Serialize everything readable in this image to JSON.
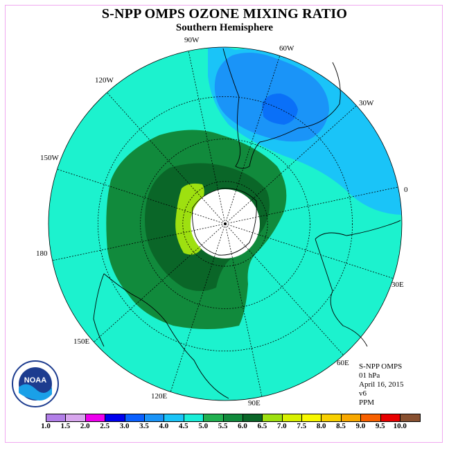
{
  "title": "S-NPP OMPS OZONE MIXING RATIO",
  "subtitle": "Southern Hemisphere",
  "longitude_labels": [
    "90W",
    "60W",
    "30W",
    "0",
    "30E",
    "60E",
    "90E",
    "120E",
    "150E",
    "180",
    "150W",
    "120W"
  ],
  "info": {
    "instrument": "S-NPP OMPS",
    "level": "01 hPa",
    "date": "April 16, 2015",
    "version": "v6",
    "units": "PPM"
  },
  "logo_text": "NOAA",
  "colorbar": {
    "labels": [
      "1.0",
      "1.5",
      "2.0",
      "2.5",
      "3.0",
      "3.5",
      "4.0",
      "4.5",
      "5.0",
      "5.5",
      "6.0",
      "6.5",
      "7.0",
      "7.5",
      "8.0",
      "8.5",
      "9.0",
      "9.5",
      "10.0"
    ],
    "colors": [
      "#b27fe8",
      "#d8a6ee",
      "#ee00ee",
      "#0000ee",
      "#0a60ff",
      "#1a94f8",
      "#1ac4f8",
      "#1aeed8",
      "#21b050",
      "#118a3c",
      "#0a6628",
      "#9ee010",
      "#d8f000",
      "#f8f800",
      "#f8d000",
      "#f8a800",
      "#f86000",
      "#e80000",
      "#885030"
    ]
  },
  "map_colors": {
    "background_field": "#1cf2ce",
    "contour_4_5": "#1ac4f8",
    "contour_4_0": "#1a94f8",
    "contour_3_5": "#0a70f8",
    "contour_5_5": "#118a3c",
    "contour_6_0": "#0a6628",
    "contour_6_5": "#9ee010",
    "polar_mask": "#ffffff"
  }
}
